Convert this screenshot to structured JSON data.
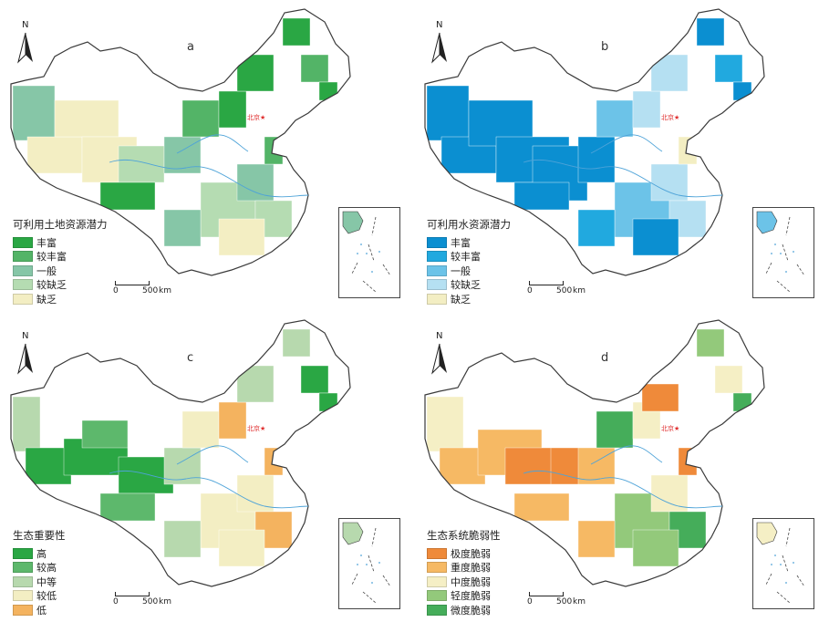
{
  "north_label": "N",
  "beijing_label": "北京★",
  "scale": {
    "zero": "0",
    "distance": "500",
    "unit": "km"
  },
  "colors": {
    "outline": "#3a3a3a",
    "river": "#4ea3d8"
  },
  "panels": [
    {
      "letter": "a",
      "legend_title": "可利用土地资源潜力",
      "classes": [
        {
          "label": "丰富",
          "color": "#2aa744"
        },
        {
          "label": "较丰富",
          "color": "#53b467"
        },
        {
          "label": "一般",
          "color": "#86c6a7"
        },
        {
          "label": "较缺乏",
          "color": "#b5dcb2"
        },
        {
          "label": "缺乏",
          "color": "#f3eec3"
        }
      ]
    },
    {
      "letter": "b",
      "legend_title": "可利用水资源潜力",
      "classes": [
        {
          "label": "丰富",
          "color": "#0b8fd1"
        },
        {
          "label": "较丰富",
          "color": "#21a9df"
        },
        {
          "label": "一般",
          "color": "#6cc3e8"
        },
        {
          "label": "较缺乏",
          "color": "#b5e0f2"
        },
        {
          "label": "缺乏",
          "color": "#f3eec3"
        }
      ]
    },
    {
      "letter": "c",
      "legend_title": "生态重要性",
      "classes": [
        {
          "label": "高",
          "color": "#2aa744"
        },
        {
          "label": "较高",
          "color": "#5db86c"
        },
        {
          "label": "中等",
          "color": "#b7d9ae"
        },
        {
          "label": "较低",
          "color": "#f3eec3"
        },
        {
          "label": "低",
          "color": "#f4b35f"
        }
      ]
    },
    {
      "letter": "d",
      "legend_title": "生态系统脆弱性",
      "classes": [
        {
          "label": "极度脆弱",
          "color": "#ef8a3a"
        },
        {
          "label": "重度脆弱",
          "color": "#f6b964"
        },
        {
          "label": "中度脆弱",
          "color": "#f5efc5"
        },
        {
          "label": "轻度脆弱",
          "color": "#93c97b"
        },
        {
          "label": "微度脆弱",
          "color": "#45ad5a"
        }
      ]
    }
  ]
}
